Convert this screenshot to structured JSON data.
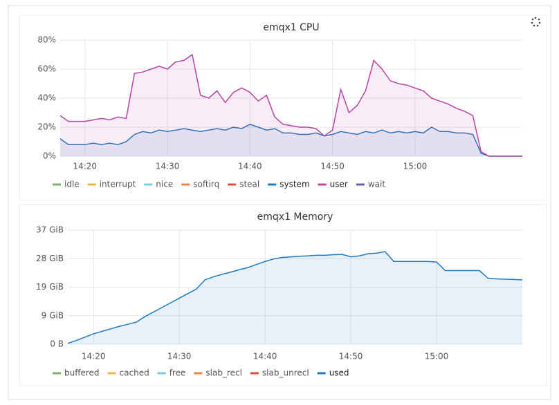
{
  "chart_data": [
    {
      "type": "line",
      "title": "emqx1 CPU",
      "x": [
        "14:17",
        "14:18",
        "14:19",
        "14:20",
        "14:21",
        "14:22",
        "14:23",
        "14:24",
        "14:25",
        "14:26",
        "14:27",
        "14:28",
        "14:29",
        "14:30",
        "14:31",
        "14:32",
        "14:33",
        "14:34",
        "14:35",
        "14:36",
        "14:37",
        "14:38",
        "14:39",
        "14:40",
        "14:41",
        "14:42",
        "14:43",
        "14:44",
        "14:45",
        "14:46",
        "14:47",
        "14:48",
        "14:49",
        "14:50",
        "14:51",
        "14:52",
        "14:53",
        "14:54",
        "14:55",
        "14:56",
        "14:57",
        "14:58",
        "14:59",
        "15:00",
        "15:01",
        "15:02",
        "15:03",
        "15:04",
        "15:05",
        "15:06",
        "15:07",
        "15:08",
        "15:09",
        "15:10",
        "15:11",
        "15:12",
        "15:13"
      ],
      "xlim": [
        "14:17",
        "15:13"
      ],
      "xticks": [
        "14:20",
        "14:30",
        "14:40",
        "14:50",
        "15:00"
      ],
      "ylim": [
        0,
        80
      ],
      "yticks": [
        {
          "value": 0,
          "label": "0%"
        },
        {
          "value": 20,
          "label": "20%"
        },
        {
          "value": 40,
          "label": "40%"
        },
        {
          "value": 60,
          "label": "60%"
        },
        {
          "value": 80,
          "label": "80%"
        }
      ],
      "grid": true,
      "series": [
        {
          "name": "idle",
          "color": "#7eb26d"
        },
        {
          "name": "interrupt",
          "color": "#eab839"
        },
        {
          "name": "nice",
          "color": "#6ed0e0"
        },
        {
          "name": "softirq",
          "color": "#ef843c"
        },
        {
          "name": "steal",
          "color": "#e24d42"
        },
        {
          "name": "system",
          "color": "#1f78c1",
          "values": [
            12,
            8,
            8,
            8,
            9,
            8,
            9,
            8,
            10,
            15,
            17,
            16,
            18,
            17,
            18,
            19,
            18,
            17,
            18,
            19,
            18,
            20,
            19,
            22,
            20,
            18,
            19,
            16,
            16,
            15,
            15,
            16,
            14,
            15,
            17,
            16,
            15,
            17,
            16,
            18,
            16,
            17,
            16,
            17,
            16,
            20,
            17,
            17,
            16,
            16,
            15,
            2,
            0,
            0,
            0,
            0,
            0
          ]
        },
        {
          "name": "user",
          "color": "#ba43a9",
          "values": [
            28,
            24,
            24,
            24,
            25,
            26,
            25,
            27,
            26,
            57,
            58,
            60,
            62,
            60,
            65,
            66,
            70,
            42,
            40,
            45,
            37,
            44,
            47,
            44,
            38,
            42,
            27,
            22,
            21,
            20,
            20,
            19,
            14,
            18,
            46,
            30,
            35,
            45,
            66,
            60,
            52,
            50,
            49,
            47,
            45,
            40,
            38,
            36,
            33,
            31,
            28,
            3,
            0,
            0,
            0,
            0,
            0
          ]
        },
        {
          "name": "wait",
          "color": "#705da0"
        }
      ]
    },
    {
      "type": "line",
      "title": "emqx1 Memory",
      "x": [
        "14:17",
        "14:18",
        "14:19",
        "14:20",
        "14:21",
        "14:22",
        "14:23",
        "14:24",
        "14:25",
        "14:26",
        "14:27",
        "14:28",
        "14:29",
        "14:30",
        "14:31",
        "14:32",
        "14:33",
        "14:34",
        "14:35",
        "14:36",
        "14:37",
        "14:38",
        "14:39",
        "14:40",
        "14:41",
        "14:42",
        "14:43",
        "14:44",
        "14:45",
        "14:46",
        "14:47",
        "14:48",
        "14:49",
        "14:50",
        "14:51",
        "14:52",
        "14:53",
        "14:54",
        "14:55",
        "14:56",
        "14:57",
        "14:58",
        "14:59",
        "15:00",
        "15:01",
        "15:02",
        "15:03",
        "15:04",
        "15:05",
        "15:06",
        "15:07",
        "15:08",
        "15:09",
        "15:10"
      ],
      "xlim": [
        "14:17",
        "15:10"
      ],
      "xticks": [
        "14:20",
        "14:30",
        "14:40",
        "14:50",
        "15:00"
      ],
      "ylim": [
        0,
        37.2
      ],
      "yticks": [
        {
          "value": 0,
          "label": "0 B"
        },
        {
          "value": 9.3,
          "label": "9 GiB"
        },
        {
          "value": 18.6,
          "label": "19 GiB"
        },
        {
          "value": 27.9,
          "label": "28 GiB"
        },
        {
          "value": 37.2,
          "label": "37 GiB"
        }
      ],
      "grid": true,
      "series": [
        {
          "name": "buffered",
          "color": "#7eb26d"
        },
        {
          "name": "cached",
          "color": "#eab839"
        },
        {
          "name": "free",
          "color": "#6ed0e0"
        },
        {
          "name": "slab_recl",
          "color": "#ef843c"
        },
        {
          "name": "slab_unrecl",
          "color": "#e24d42"
        },
        {
          "name": "used",
          "color": "#1f78c1",
          "values": [
            0.3,
            1.2,
            2.3,
            3.4,
            4.2,
            5,
            5.8,
            6.5,
            7.2,
            9,
            10.5,
            12,
            13.5,
            15,
            16.5,
            18,
            21,
            22,
            22.8,
            23.5,
            24.3,
            25,
            26,
            27,
            27.8,
            28.3,
            28.5,
            28.7,
            28.8,
            29,
            29,
            29.2,
            29.3,
            28.5,
            28.8,
            29.5,
            29.7,
            30.2,
            27,
            27,
            27,
            27,
            27,
            26.8,
            24,
            24,
            24,
            24,
            24,
            21.5,
            21.3,
            21.2,
            21.1,
            21
          ]
        }
      ]
    }
  ]
}
